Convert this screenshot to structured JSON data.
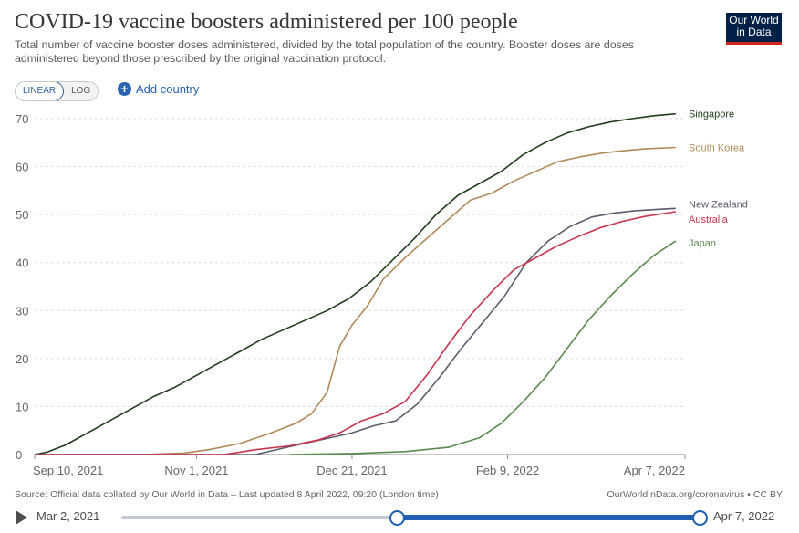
{
  "header": {
    "title": "COVID-19 vaccine boosters administered per 100 people",
    "subtitle": "Total number of vaccine booster doses administered, divided by the total population of the country. Booster doses are doses administered beyond those prescribed by the original vaccination protocol.",
    "logo_line1": "Our World",
    "logo_line2": "in Data"
  },
  "controls": {
    "linear_label": "LINEAR",
    "log_label": "LOG",
    "add_country_label": "Add country",
    "scale_selected": "linear"
  },
  "footer": {
    "source": "Source: Official data collated by Our World in Data – Last updated 8 April 2022, 09:20 (London time)",
    "credit": "OurWorldInData.org/coronavirus • CC BY"
  },
  "timeline": {
    "start_label": "Mar 2, 2021",
    "end_label": "Apr 7, 2022"
  },
  "chart_data": {
    "type": "line",
    "title": "COVID-19 vaccine boosters administered per 100 people",
    "x_type": "date",
    "xlim": [
      "2021-09-10",
      "2022-04-07"
    ],
    "ylim": [
      0,
      70
    ],
    "y_ticks": [
      0,
      10,
      20,
      30,
      40,
      50,
      60,
      70
    ],
    "x_ticks": [
      {
        "date": "2021-09-10",
        "label": "Sep 10, 2021"
      },
      {
        "date": "2021-11-01",
        "label": "Nov 1, 2021"
      },
      {
        "date": "2021-12-21",
        "label": "Dec 21, 2021"
      },
      {
        "date": "2022-02-09",
        "label": "Feb 9, 2022"
      },
      {
        "date": "2022-04-07",
        "label": "Apr 7, 2022"
      }
    ],
    "grid": "horizontal",
    "legend": "line-end labels",
    "series": [
      {
        "name": "Singapore",
        "color": "#1f3d1a",
        "points": [
          [
            "2021-09-10",
            0
          ],
          [
            "2021-09-14",
            0.5
          ],
          [
            "2021-09-20",
            2
          ],
          [
            "2021-09-27",
            4.5
          ],
          [
            "2021-10-04",
            7
          ],
          [
            "2021-10-11",
            9.5
          ],
          [
            "2021-10-18",
            12
          ],
          [
            "2021-10-25",
            14
          ],
          [
            "2021-11-01",
            16.5
          ],
          [
            "2021-11-08",
            19
          ],
          [
            "2021-11-15",
            21.5
          ],
          [
            "2021-11-22",
            24
          ],
          [
            "2021-11-29",
            26
          ],
          [
            "2021-12-06",
            28
          ],
          [
            "2021-12-13",
            30
          ],
          [
            "2021-12-20",
            32.5
          ],
          [
            "2021-12-27",
            36
          ],
          [
            "2022-01-03",
            40.5
          ],
          [
            "2022-01-10",
            45
          ],
          [
            "2022-01-17",
            50
          ],
          [
            "2022-01-24",
            54
          ],
          [
            "2022-01-31",
            56.5
          ],
          [
            "2022-02-07",
            59
          ],
          [
            "2022-02-14",
            62.5
          ],
          [
            "2022-02-21",
            65
          ],
          [
            "2022-02-28",
            67
          ],
          [
            "2022-03-07",
            68.3
          ],
          [
            "2022-03-14",
            69.3
          ],
          [
            "2022-03-21",
            70
          ],
          [
            "2022-03-28",
            70.6
          ],
          [
            "2022-04-04",
            71
          ]
        ]
      },
      {
        "name": "South Korea",
        "color": "#b08a5a",
        "points": [
          [
            "2021-09-10",
            0
          ],
          [
            "2021-10-15",
            0
          ],
          [
            "2021-10-28",
            0.3
          ],
          [
            "2021-11-05",
            1
          ],
          [
            "2021-11-15",
            2.3
          ],
          [
            "2021-11-25",
            4.5
          ],
          [
            "2021-12-03",
            6.5
          ],
          [
            "2021-12-08",
            8.5
          ],
          [
            "2021-12-13",
            13
          ],
          [
            "2021-12-17",
            22.5
          ],
          [
            "2021-12-21",
            27
          ],
          [
            "2021-12-26",
            31
          ],
          [
            "2021-12-31",
            36.5
          ],
          [
            "2022-01-07",
            41
          ],
          [
            "2022-01-14",
            45
          ],
          [
            "2022-01-21",
            49
          ],
          [
            "2022-01-28",
            53
          ],
          [
            "2022-02-04",
            54.5
          ],
          [
            "2022-02-11",
            57
          ],
          [
            "2022-02-18",
            59
          ],
          [
            "2022-02-25",
            61
          ],
          [
            "2022-03-04",
            62
          ],
          [
            "2022-03-11",
            62.8
          ],
          [
            "2022-03-18",
            63.3
          ],
          [
            "2022-03-25",
            63.7
          ],
          [
            "2022-04-04",
            64
          ]
        ]
      },
      {
        "name": "New Zealand",
        "color": "#5c5a6e",
        "points": [
          [
            "2021-09-10",
            0
          ],
          [
            "2021-11-20",
            0
          ],
          [
            "2021-11-30",
            1.5
          ],
          [
            "2021-12-07",
            2.5
          ],
          [
            "2021-12-14",
            3.5
          ],
          [
            "2021-12-21",
            4.5
          ],
          [
            "2021-12-28",
            6
          ],
          [
            "2022-01-04",
            7
          ],
          [
            "2022-01-11",
            10.5
          ],
          [
            "2022-01-18",
            16
          ],
          [
            "2022-01-25",
            22
          ],
          [
            "2022-02-01",
            27.5
          ],
          [
            "2022-02-08",
            33
          ],
          [
            "2022-02-15",
            40
          ],
          [
            "2022-02-22",
            44.5
          ],
          [
            "2022-03-01",
            47.5
          ],
          [
            "2022-03-08",
            49.5
          ],
          [
            "2022-03-15",
            50.3
          ],
          [
            "2022-03-22",
            50.8
          ],
          [
            "2022-03-29",
            51.1
          ],
          [
            "2022-04-04",
            51.3
          ]
        ]
      },
      {
        "name": "Australia",
        "color": "#c8334e",
        "points": [
          [
            "2021-09-10",
            0
          ],
          [
            "2021-11-10",
            0
          ],
          [
            "2021-11-20",
            1
          ],
          [
            "2021-12-01",
            1.8
          ],
          [
            "2021-12-10",
            3
          ],
          [
            "2021-12-17",
            4.5
          ],
          [
            "2021-12-24",
            7
          ],
          [
            "2021-12-31",
            8.5
          ],
          [
            "2022-01-07",
            11
          ],
          [
            "2022-01-14",
            16.5
          ],
          [
            "2022-01-21",
            23
          ],
          [
            "2022-01-28",
            29
          ],
          [
            "2022-02-04",
            34
          ],
          [
            "2022-02-11",
            38.5
          ],
          [
            "2022-02-18",
            41
          ],
          [
            "2022-02-25",
            43.5
          ],
          [
            "2022-03-04",
            45.5
          ],
          [
            "2022-03-11",
            47.3
          ],
          [
            "2022-03-18",
            48.6
          ],
          [
            "2022-03-25",
            49.6
          ],
          [
            "2022-04-04",
            50.6
          ]
        ]
      },
      {
        "name": "Japan",
        "color": "#5a8a4f",
        "points": [
          [
            "2021-12-01",
            0
          ],
          [
            "2021-12-21",
            0.2
          ],
          [
            "2022-01-07",
            0.6
          ],
          [
            "2022-01-21",
            1.5
          ],
          [
            "2022-01-31",
            3.5
          ],
          [
            "2022-02-07",
            6.5
          ],
          [
            "2022-02-14",
            11
          ],
          [
            "2022-02-21",
            16
          ],
          [
            "2022-02-28",
            22
          ],
          [
            "2022-03-07",
            28
          ],
          [
            "2022-03-14",
            33
          ],
          [
            "2022-03-21",
            37.5
          ],
          [
            "2022-03-28",
            41.5
          ],
          [
            "2022-04-04",
            44.5
          ]
        ]
      }
    ]
  }
}
